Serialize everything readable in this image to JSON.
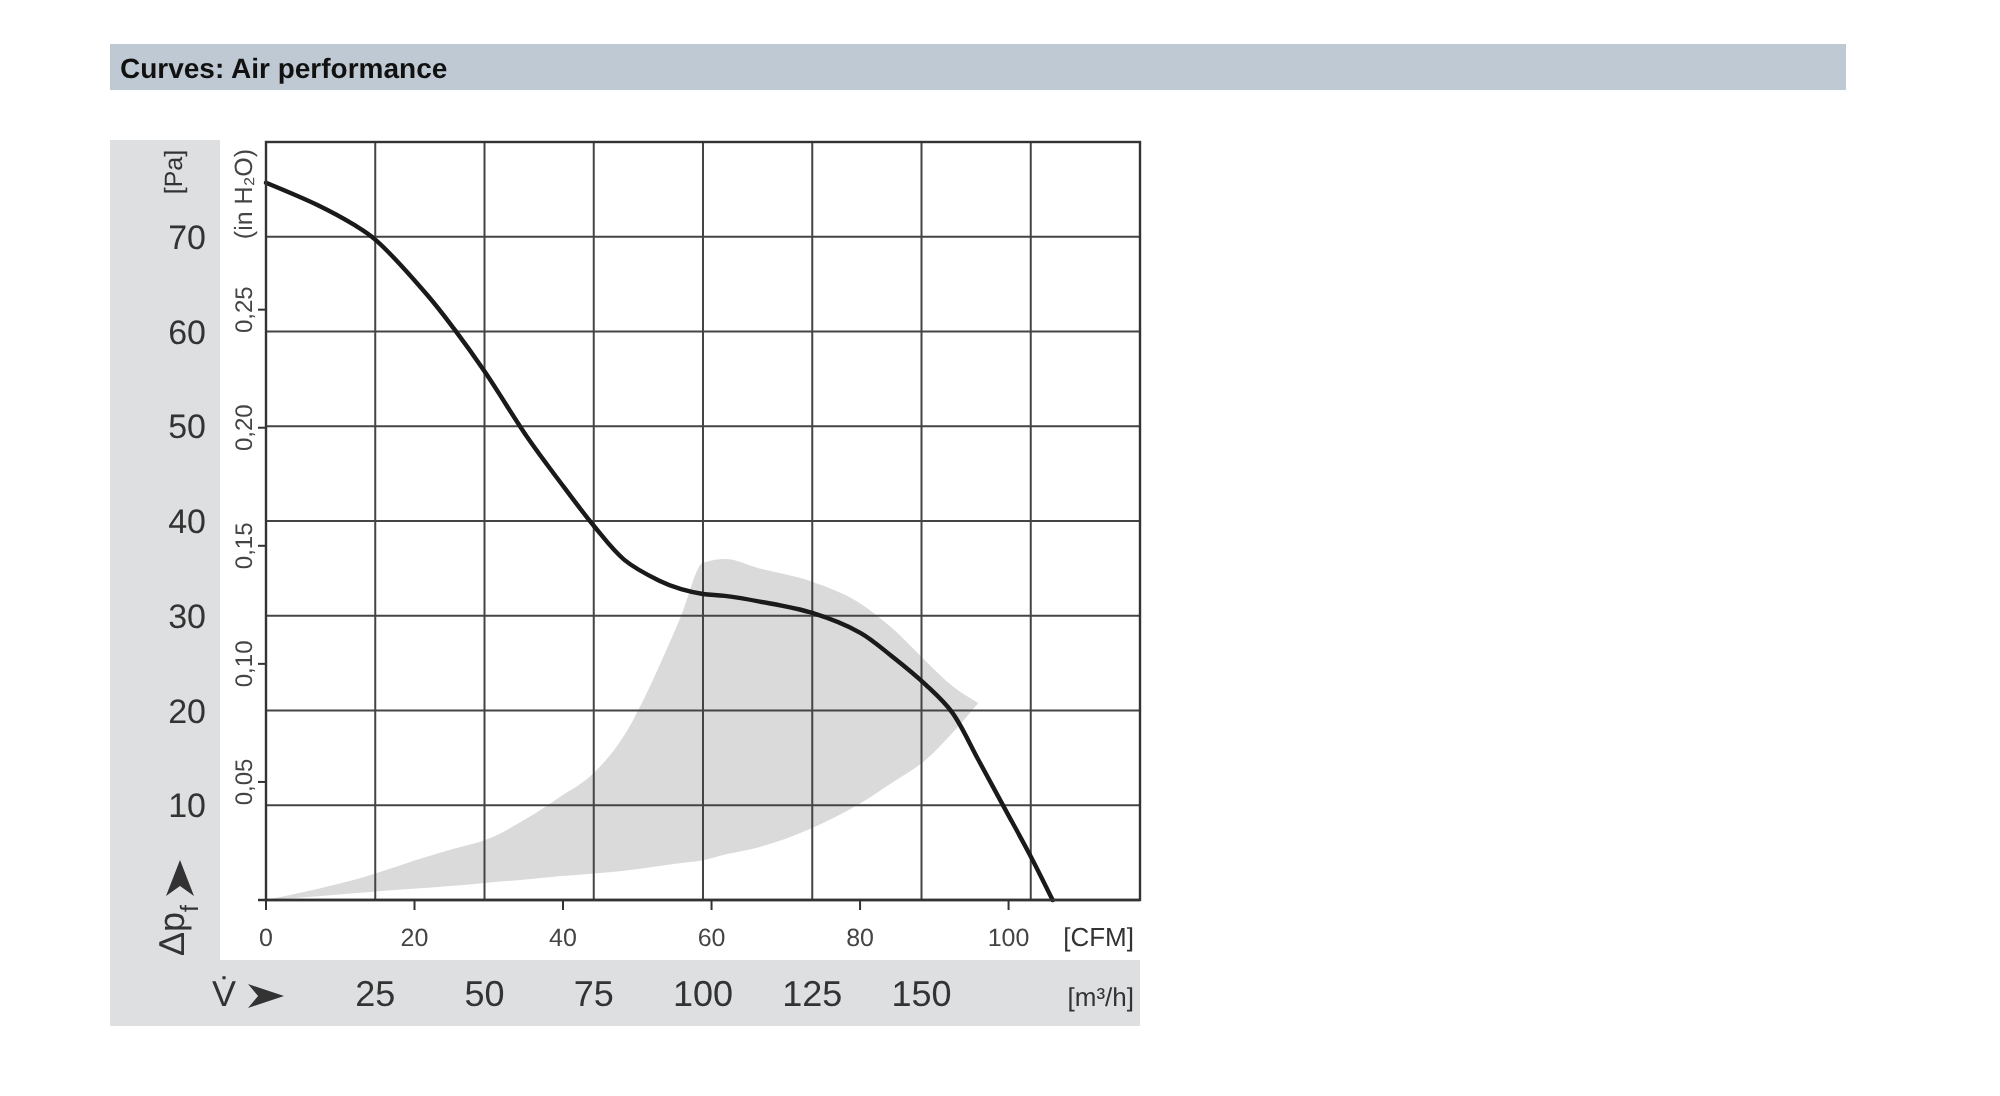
{
  "chart_data": {
    "type": "line",
    "title": "Curves: Air performance",
    "xlabel": "[m³/h]",
    "ylabel": "[Pa]",
    "x2label": "[CFM]",
    "y2label": "(in H₂O)",
    "annotations": [
      "Δp$_{f}$",
      "V̇"
    ],
    "xlim": [
      0,
      200
    ],
    "xticks": [
      25,
      50,
      75,
      100,
      125,
      150,
      {
        "value": 175,
        "label": null
      }
    ],
    "ylim": [
      0,
      80
    ],
    "yticks": [
      10,
      20,
      30,
      40,
      50,
      60,
      70
    ],
    "x2lim": [
      0,
      117.7
    ],
    "x2ticks": [
      0,
      20,
      40,
      60,
      80,
      100
    ],
    "y2lim": [
      0,
      0.321
    ],
    "y2ticks": [
      {
        "value": 0.05,
        "label": "0,05"
      },
      {
        "value": 0.1,
        "label": "0,10"
      },
      {
        "value": 0.15,
        "label": "0,15"
      },
      {
        "value": 0.2,
        "label": "0,20"
      },
      {
        "value": 0.25,
        "label": "0,25"
      }
    ],
    "grid": true,
    "series": [
      {
        "color": "#1a1a1a",
        "x": [
          0,
          12,
          20,
          25,
          37,
          43,
          50,
          60,
          67,
          75,
          82,
          90,
          95,
          100,
          105,
          113,
          125,
          136,
          143,
          151,
          157,
          163,
          169,
          175,
          180
        ],
        "values": [
          75.7,
          73.3,
          71.3,
          69.7,
          63.8,
          60.3,
          55.8,
          48.7,
          44.3,
          39.5,
          35.9,
          33.7,
          32.8,
          32.3,
          32.1,
          31.5,
          30.3,
          28.2,
          25.8,
          22.7,
          19.8,
          14.8,
          9.7,
          4.6,
          0
        ],
        "upper": [
          0,
          1.2,
          2.1,
          2.8,
          4.6,
          5.4,
          6.3,
          8.7,
          10.8,
          13.4,
          17.4,
          24.7,
          30,
          35.6,
          36,
          35,
          33.6,
          31.3,
          28.8,
          25.2,
          22.6,
          20.8,
          null,
          null,
          null
        ],
        "lower": [
          0,
          0.4,
          0.7,
          0.9,
          1.3,
          1.5,
          1.8,
          2.2,
          2.5,
          2.8,
          3.1,
          3.6,
          3.9,
          4.2,
          4.8,
          5.6,
          7.6,
          10.2,
          12.3,
          14.8,
          17.6,
          20.8,
          null,
          null,
          null
        ]
      }
    ]
  }
}
